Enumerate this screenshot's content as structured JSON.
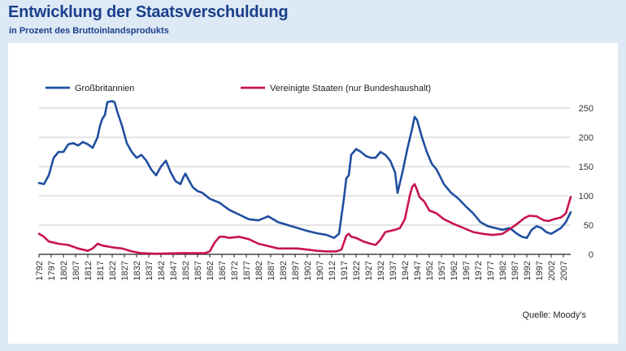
{
  "title": "Entwicklung der Staatsverschuldung",
  "subtitle": "in Prozent des Bruttoinlandsprodukts",
  "source": "Quelle: Moody's",
  "colors": {
    "uk": "#1f4fa0",
    "us": "#c8144b",
    "title": "#1a3f8c"
  },
  "chart_data": {
    "type": "line",
    "title": "Entwicklung der Staatsverschuldung",
    "subtitle": "in Prozent des Bruttoinlandsprodukts",
    "xlabel": "",
    "ylabel": "",
    "xlim": [
      1792,
      2010
    ],
    "ylim": [
      0,
      250
    ],
    "y_ticks": [
      0,
      50,
      100,
      150,
      200,
      250
    ],
    "x_ticks": [
      "1792",
      "1797",
      "1802",
      "1807",
      "1812",
      "1817",
      "1822",
      "1827",
      "1832",
      "1837",
      "1842",
      "1847",
      "1852",
      "1857",
      "1862",
      "1867",
      "1872",
      "1877",
      "1882",
      "1887",
      "1892",
      "1897",
      "1902",
      "1907",
      "1912",
      "1917",
      "1922",
      "1927",
      "1932",
      "1937",
      "1942",
      "1947",
      "1952",
      "1957",
      "1962",
      "1967",
      "1972",
      "1977",
      "1982",
      "1987",
      "1992",
      "1997",
      "2002",
      "2007"
    ],
    "grid": "horizontal",
    "legend_position": "top",
    "series": [
      {
        "name": "Großbritannien",
        "color": "#1f4fa0",
        "points": [
          [
            1792,
            122
          ],
          [
            1794,
            120
          ],
          [
            1796,
            135
          ],
          [
            1798,
            165
          ],
          [
            1800,
            175
          ],
          [
            1802,
            175
          ],
          [
            1804,
            188
          ],
          [
            1806,
            190
          ],
          [
            1808,
            186
          ],
          [
            1810,
            192
          ],
          [
            1812,
            188
          ],
          [
            1814,
            182
          ],
          [
            1816,
            200
          ],
          [
            1817,
            220
          ],
          [
            1818,
            232
          ],
          [
            1819,
            238
          ],
          [
            1820,
            260
          ],
          [
            1822,
            262
          ],
          [
            1823,
            260
          ],
          [
            1824,
            245
          ],
          [
            1826,
            220
          ],
          [
            1828,
            190
          ],
          [
            1830,
            175
          ],
          [
            1832,
            165
          ],
          [
            1834,
            170
          ],
          [
            1836,
            160
          ],
          [
            1838,
            145
          ],
          [
            1840,
            135
          ],
          [
            1842,
            150
          ],
          [
            1844,
            160
          ],
          [
            1846,
            140
          ],
          [
            1848,
            125
          ],
          [
            1850,
            120
          ],
          [
            1851,
            130
          ],
          [
            1852,
            138
          ],
          [
            1853,
            130
          ],
          [
            1855,
            115
          ],
          [
            1857,
            108
          ],
          [
            1859,
            105
          ],
          [
            1862,
            95
          ],
          [
            1866,
            88
          ],
          [
            1870,
            76
          ],
          [
            1874,
            68
          ],
          [
            1878,
            60
          ],
          [
            1882,
            58
          ],
          [
            1886,
            65
          ],
          [
            1890,
            55
          ],
          [
            1894,
            50
          ],
          [
            1898,
            45
          ],
          [
            1902,
            40
          ],
          [
            1906,
            36
          ],
          [
            1910,
            33
          ],
          [
            1913,
            28
          ],
          [
            1915,
            35
          ],
          [
            1917,
            95
          ],
          [
            1918,
            130
          ],
          [
            1919,
            135
          ],
          [
            1920,
            170
          ],
          [
            1921,
            175
          ],
          [
            1922,
            180
          ],
          [
            1924,
            175
          ],
          [
            1926,
            168
          ],
          [
            1928,
            165
          ],
          [
            1930,
            165
          ],
          [
            1932,
            175
          ],
          [
            1934,
            170
          ],
          [
            1936,
            160
          ],
          [
            1938,
            140
          ],
          [
            1939,
            105
          ],
          [
            1941,
            140
          ],
          [
            1943,
            180
          ],
          [
            1945,
            215
          ],
          [
            1946,
            235
          ],
          [
            1947,
            230
          ],
          [
            1949,
            200
          ],
          [
            1951,
            175
          ],
          [
            1953,
            155
          ],
          [
            1955,
            145
          ],
          [
            1958,
            120
          ],
          [
            1961,
            105
          ],
          [
            1964,
            95
          ],
          [
            1967,
            82
          ],
          [
            1970,
            70
          ],
          [
            1973,
            55
          ],
          [
            1976,
            48
          ],
          [
            1979,
            45
          ],
          [
            1982,
            42
          ],
          [
            1985,
            45
          ],
          [
            1988,
            35
          ],
          [
            1990,
            30
          ],
          [
            1992,
            28
          ],
          [
            1994,
            42
          ],
          [
            1996,
            48
          ],
          [
            1998,
            45
          ],
          [
            2000,
            38
          ],
          [
            2002,
            35
          ],
          [
            2004,
            40
          ],
          [
            2006,
            45
          ],
          [
            2008,
            55
          ],
          [
            2010,
            72
          ]
        ]
      },
      {
        "name": "Vereinigte Staaten (nur Bundeshaushalt)",
        "color": "#c8144b",
        "points": [
          [
            1792,
            35
          ],
          [
            1794,
            30
          ],
          [
            1796,
            22
          ],
          [
            1800,
            18
          ],
          [
            1804,
            16
          ],
          [
            1808,
            10
          ],
          [
            1812,
            6
          ],
          [
            1814,
            10
          ],
          [
            1816,
            18
          ],
          [
            1818,
            15
          ],
          [
            1822,
            12
          ],
          [
            1826,
            10
          ],
          [
            1830,
            5
          ],
          [
            1834,
            2
          ],
          [
            1840,
            1
          ],
          [
            1850,
            2
          ],
          [
            1860,
            2
          ],
          [
            1862,
            5
          ],
          [
            1864,
            20
          ],
          [
            1866,
            30
          ],
          [
            1868,
            30
          ],
          [
            1870,
            28
          ],
          [
            1874,
            30
          ],
          [
            1878,
            26
          ],
          [
            1882,
            18
          ],
          [
            1886,
            14
          ],
          [
            1890,
            10
          ],
          [
            1894,
            10
          ],
          [
            1898,
            10
          ],
          [
            1902,
            8
          ],
          [
            1906,
            6
          ],
          [
            1910,
            5
          ],
          [
            1914,
            5
          ],
          [
            1916,
            8
          ],
          [
            1917,
            20
          ],
          [
            1918,
            32
          ],
          [
            1919,
            35
          ],
          [
            1920,
            30
          ],
          [
            1922,
            28
          ],
          [
            1925,
            22
          ],
          [
            1928,
            18
          ],
          [
            1930,
            16
          ],
          [
            1932,
            25
          ],
          [
            1934,
            38
          ],
          [
            1936,
            40
          ],
          [
            1938,
            42
          ],
          [
            1940,
            45
          ],
          [
            1942,
            60
          ],
          [
            1944,
            100
          ],
          [
            1945,
            115
          ],
          [
            1946,
            120
          ],
          [
            1947,
            110
          ],
          [
            1948,
            98
          ],
          [
            1950,
            90
          ],
          [
            1952,
            75
          ],
          [
            1955,
            70
          ],
          [
            1958,
            60
          ],
          [
            1962,
            52
          ],
          [
            1966,
            45
          ],
          [
            1970,
            38
          ],
          [
            1974,
            35
          ],
          [
            1978,
            33
          ],
          [
            1982,
            35
          ],
          [
            1985,
            43
          ],
          [
            1988,
            52
          ],
          [
            1991,
            62
          ],
          [
            1993,
            66
          ],
          [
            1996,
            65
          ],
          [
            1999,
            58
          ],
          [
            2001,
            57
          ],
          [
            2003,
            60
          ],
          [
            2006,
            63
          ],
          [
            2008,
            70
          ],
          [
            2010,
            98
          ]
        ]
      }
    ]
  }
}
